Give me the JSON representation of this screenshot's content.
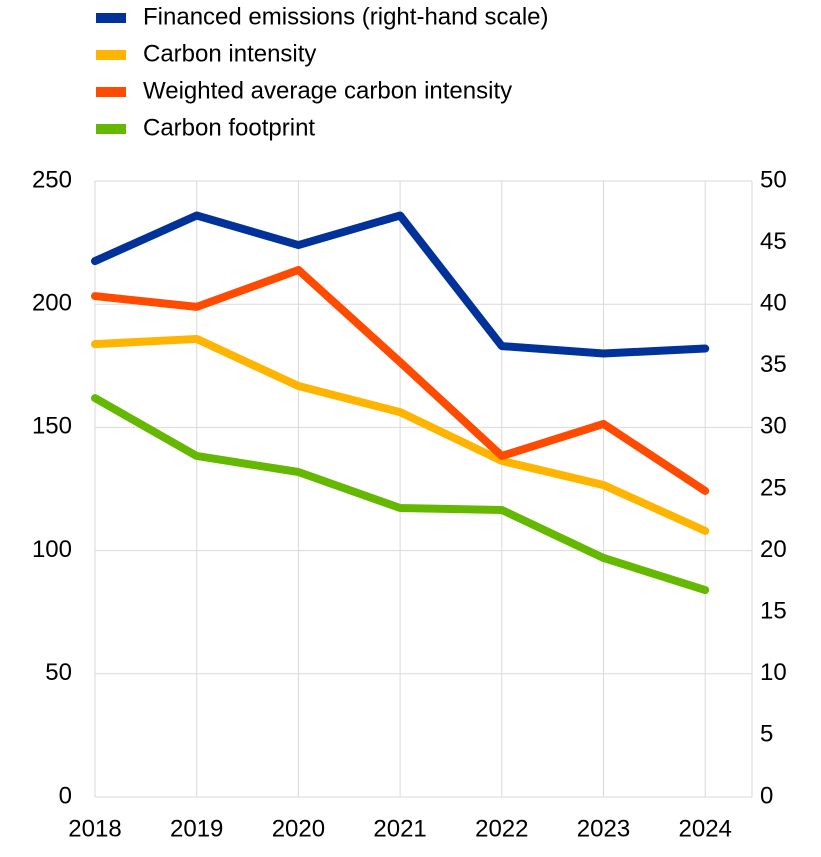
{
  "chart_data": {
    "type": "line",
    "categories": [
      "2018",
      "2019",
      "2020",
      "2021",
      "2022",
      "2023",
      "2024"
    ],
    "series": [
      {
        "name": "Financed emissions (right-hand scale)",
        "color": "#003299",
        "axis": "y2",
        "values": [
          43.5,
          47.2,
          44.8,
          47.2,
          36.6,
          36.0,
          36.4
        ]
      },
      {
        "name": "Carbon intensity",
        "color": "#ffb400",
        "values": [
          183.8,
          185.9,
          166.8,
          156.2,
          136.4,
          126.6,
          108
        ]
      },
      {
        "name": "Weighted average carbon intensity",
        "color": "#ff4b00",
        "values": [
          203.3,
          198.9,
          213.9,
          176.5,
          138.4,
          151.4,
          124.2
        ]
      },
      {
        "name": "Carbon footprint",
        "color": "#65b800",
        "values": [
          161.9,
          138.4,
          131.9,
          117.3,
          116.5,
          97,
          84
        ]
      }
    ],
    "ylim": [
      0,
      250
    ],
    "yticks": [
      0,
      50,
      100,
      150,
      200,
      250
    ],
    "y2lim": [
      0,
      50
    ],
    "y2ticks": [
      0,
      5,
      10,
      15,
      20,
      25,
      30,
      35,
      40,
      45,
      50
    ],
    "grid": true,
    "legend": "top-left"
  }
}
